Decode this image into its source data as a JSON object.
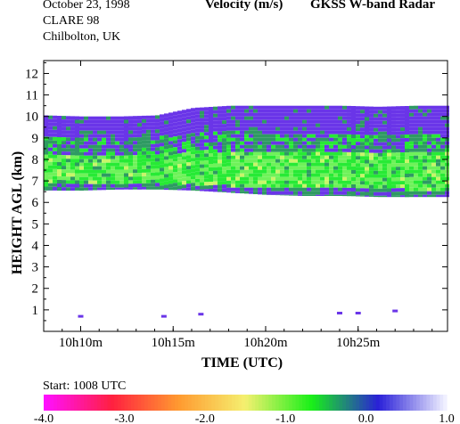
{
  "header": {
    "date": "October  23, 1998",
    "campaign": "CLARE 98",
    "site": "Chilbolton, UK",
    "quantity": "Velocity (m/s)",
    "instrument": "GKSS  W-band Radar"
  },
  "footer": {
    "start_label": "Start: 1008 UTC"
  },
  "colors": {
    "background": "#ffffff",
    "echo_colormap": [
      "#6a35e8",
      "#2f9a63",
      "#27ea35",
      "#6ff25a",
      "#c8f56a"
    ]
  },
  "chart_data": {
    "type": "heatmap",
    "title": "Velocity (m/s)",
    "xlabel": "TIME (UTC)",
    "ylabel": "HEIGHT AGL (km)",
    "xlim": [
      "10h08m",
      "10h29m50s"
    ],
    "ylim": [
      0,
      12.6
    ],
    "x_ticks": [
      "10h10m",
      "10h15m",
      "10h20m",
      "10h25m"
    ],
    "y_ticks": [
      "1",
      "2",
      "3",
      "4",
      "5",
      "6",
      "7",
      "8",
      "9",
      "10",
      "11",
      "12"
    ],
    "colorbar": {
      "ticks": [
        "-4.0",
        "-3.0",
        "-2.0",
        "-1.0",
        "0.0",
        "1.0"
      ],
      "range": [
        -4.0,
        1.0
      ],
      "colors": [
        "#ff10ff",
        "#ff2040",
        "#ff9a30",
        "#f5f070",
        "#18f018",
        "#2a20d8",
        "#f0f0ff"
      ]
    },
    "cloud_layer": {
      "description": "layer between base and top heights (km) versus time",
      "time_min_after_1008": [
        0,
        2,
        4,
        6,
        8,
        10,
        12,
        14,
        16,
        18,
        20,
        21.8
      ],
      "base_km": [
        6.55,
        6.55,
        6.6,
        6.6,
        6.55,
        6.45,
        6.35,
        6.3,
        6.3,
        6.25,
        6.25,
        6.25
      ],
      "top_km": [
        10.05,
        10.0,
        10.0,
        10.05,
        10.4,
        10.5,
        10.5,
        10.5,
        10.5,
        10.45,
        10.5,
        10.5
      ],
      "core_velocity_ms": -0.9,
      "edge_velocity_ms": 0.3
    },
    "low_level_echoes": [
      {
        "time": "10h10m",
        "height_km": 0.7
      },
      {
        "time": "10h14m30s",
        "height_km": 0.7
      },
      {
        "time": "10h16m30s",
        "height_km": 0.8
      },
      {
        "time": "10h24m",
        "height_km": 0.85
      },
      {
        "time": "10h25m",
        "height_km": 0.85
      },
      {
        "time": "10h27m",
        "height_km": 0.95
      }
    ]
  }
}
